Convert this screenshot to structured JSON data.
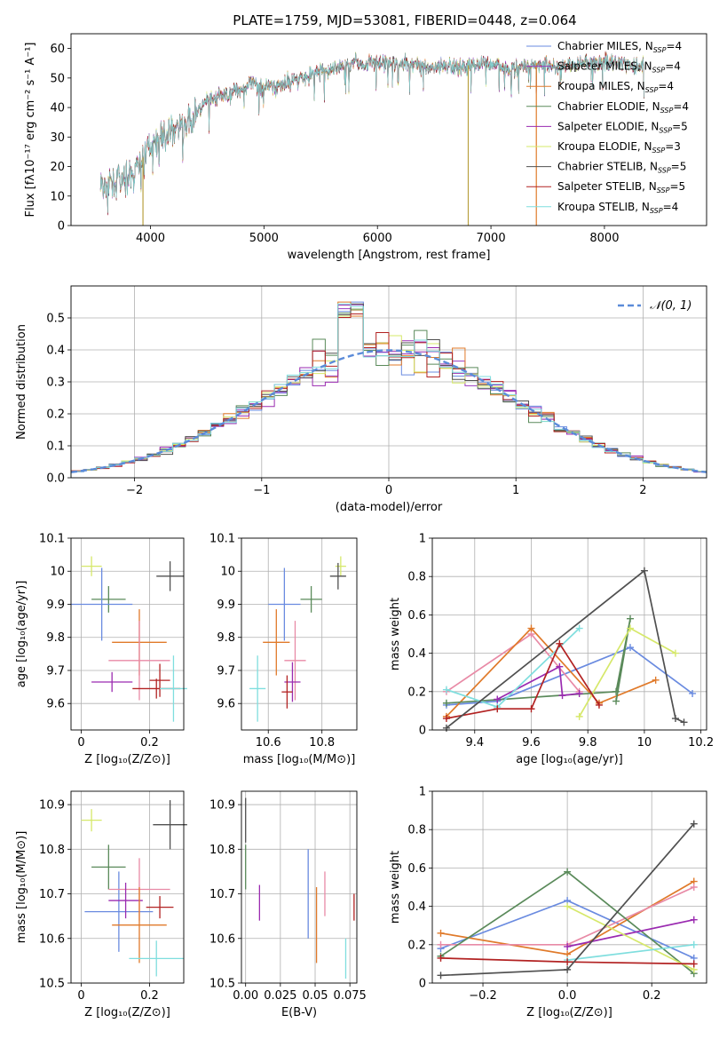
{
  "colors": [
    "#6a8be0",
    "#9a3bc0",
    "#e07a2a",
    "#5a8a5a",
    "#9a2ab0",
    "#d6e86a",
    "#505050",
    "#b22222",
    "#7fdede",
    "#e88aa6"
  ],
  "chart_data": [
    {
      "id": "spectrum",
      "type": "line",
      "title": "PLATE=1759, MJD=53081, FIBERID=0448, z=0.064",
      "xlabel": "wavelength [Angstrom, rest frame]",
      "ylabel": "Flux [fλ10⁻¹⁷ erg cm⁻² s⁻¹ A⁻¹]",
      "xlim": [
        3300,
        8900
      ],
      "ylim": [
        0,
        65
      ],
      "xticks": [
        4000,
        5000,
        6000,
        7000,
        8000
      ],
      "yticks": [
        0,
        10,
        20,
        30,
        40,
        50,
        60
      ],
      "grid": false,
      "legend_position": "right",
      "legend": [
        {
          "label": "Chabrier MILES, N",
          "sub": "SSP",
          "suffix": "=4",
          "color": "#6a8be0"
        },
        {
          "label": "Salpeter MILES, N",
          "sub": "SSP",
          "suffix": "=4",
          "color": "#9a3bc0"
        },
        {
          "label": "Kroupa MILES, N",
          "sub": "SSP",
          "suffix": "=4",
          "color": "#e07a2a"
        },
        {
          "label": "Chabrier ELODIE, N",
          "sub": "SSP",
          "suffix": "=4",
          "color": "#5a8a5a"
        },
        {
          "label": "Salpeter ELODIE, N",
          "sub": "SSP",
          "suffix": "=5",
          "color": "#9a2ab0"
        },
        {
          "label": "Kroupa ELODIE, N",
          "sub": "SSP",
          "suffix": "=3",
          "color": "#d6e86a"
        },
        {
          "label": "Chabrier STELIB, N",
          "sub": "SSP",
          "suffix": "=5",
          "color": "#505050"
        },
        {
          "label": "Salpeter STELIB, N",
          "sub": "SSP",
          "suffix": "=5",
          "color": "#b22222"
        },
        {
          "label": "Kroupa STELIB, N",
          "sub": "SSP",
          "suffix": "=4",
          "color": "#7fdede"
        }
      ],
      "continuum": [
        [
          3560,
          13
        ],
        [
          3700,
          15
        ],
        [
          3850,
          17
        ],
        [
          3920,
          22
        ],
        [
          4000,
          28
        ],
        [
          4100,
          30
        ],
        [
          4200,
          33
        ],
        [
          4300,
          33
        ],
        [
          4400,
          38
        ],
        [
          4500,
          42
        ],
        [
          4700,
          45
        ],
        [
          4900,
          48
        ],
        [
          5100,
          47
        ],
        [
          5300,
          50
        ],
        [
          5600,
          53
        ],
        [
          5800,
          55
        ],
        [
          6000,
          55
        ],
        [
          6300,
          55
        ],
        [
          6500,
          53
        ],
        [
          6700,
          54
        ],
        [
          7000,
          55
        ],
        [
          7200,
          53
        ],
        [
          7400,
          55
        ],
        [
          7600,
          54
        ],
        [
          7900,
          55
        ],
        [
          8100,
          56
        ],
        [
          8300,
          54
        ],
        [
          8350,
          54
        ]
      ],
      "dips": [
        [
          3934,
          0
        ],
        [
          6800,
          0
        ],
        [
          7400,
          0
        ]
      ]
    },
    {
      "id": "residuals",
      "type": "histogram",
      "xlabel": "(data-model)/error",
      "ylabel": "Normed distribution",
      "xlim": [
        -2.5,
        2.5
      ],
      "ylim": [
        0,
        0.6
      ],
      "xticks": [
        -2,
        -1,
        0,
        1,
        2
      ],
      "xticklabels": [
        "−2",
        "−1",
        "0",
        "1",
        "2"
      ],
      "yticks": [
        0.0,
        0.1,
        0.2,
        0.3,
        0.4,
        0.5
      ],
      "yticklabels": [
        "0.0",
        "0.1",
        "0.2",
        "0.3",
        "0.4",
        "0.5"
      ],
      "grid": true,
      "legend_position": "top-right",
      "reference": {
        "label": "𝒩(0, 1)",
        "mean": 0,
        "sigma": 1,
        "color": "#5b8bd9"
      },
      "bin_width": 0.1
    },
    {
      "id": "age-vs-Z",
      "type": "errorbar",
      "xlabel": "Z [log₁₀(Z/Z⊙)]",
      "ylabel": "age  [log₁₀(age/yr)]",
      "xlim": [
        -0.03,
        0.3
      ],
      "ylim": [
        9.52,
        10.1
      ],
      "xticks": [
        0.0,
        0.2
      ],
      "yticks": [
        9.6,
        9.7,
        9.8,
        9.9,
        10.0,
        10.1
      ],
      "grid": true,
      "points": [
        {
          "x": 0.03,
          "y": 10.015,
          "xerr": 0.03,
          "yerr": 0.03,
          "color": "#d6e86a"
        },
        {
          "x": 0.26,
          "y": 9.985,
          "xerr": 0.04,
          "yerr": 0.045,
          "color": "#505050"
        },
        {
          "x": 0.08,
          "y": 9.915,
          "xerr": 0.05,
          "yerr": 0.04,
          "color": "#5a8a5a"
        },
        {
          "x": 0.06,
          "y": 9.9,
          "xerr": 0.09,
          "yerr": 0.11,
          "color": "#6a8be0"
        },
        {
          "x": 0.17,
          "y": 9.785,
          "xerr": 0.08,
          "yerr": 0.1,
          "color": "#e07a2a"
        },
        {
          "x": 0.17,
          "y": 9.73,
          "xerr": 0.09,
          "yerr": 0.12,
          "color": "#e88aa6"
        },
        {
          "x": 0.23,
          "y": 9.67,
          "xerr": 0.03,
          "yerr": 0.05,
          "color": "#b22222"
        },
        {
          "x": 0.09,
          "y": 9.665,
          "xerr": 0.06,
          "yerr": 0.03,
          "color": "#9a2ab0"
        },
        {
          "x": 0.22,
          "y": 9.645,
          "xerr": 0.07,
          "yerr": 0.03,
          "color": "#b22222"
        },
        {
          "x": 0.27,
          "y": 9.645,
          "xerr": 0.04,
          "yerr": 0.1,
          "color": "#7fdede"
        }
      ]
    },
    {
      "id": "age-vs-mass",
      "type": "errorbar",
      "xlabel": "mass [log₁₀(M/M⊙)]",
      "ylabel": "",
      "xlim": [
        10.5,
        10.93
      ],
      "ylim": [
        9.52,
        10.1
      ],
      "xticks": [
        10.6,
        10.8
      ],
      "yticks": [
        9.6,
        9.7,
        9.8,
        9.9,
        10.0,
        10.1
      ],
      "grid": true,
      "points": [
        {
          "x": 10.87,
          "y": 10.015,
          "xerr": 0.02,
          "yerr": 0.03,
          "color": "#d6e86a"
        },
        {
          "x": 10.86,
          "y": 9.985,
          "xerr": 0.03,
          "yerr": 0.04,
          "color": "#505050"
        },
        {
          "x": 10.76,
          "y": 9.915,
          "xerr": 0.04,
          "yerr": 0.04,
          "color": "#5a8a5a"
        },
        {
          "x": 10.66,
          "y": 9.9,
          "xerr": 0.06,
          "yerr": 0.11,
          "color": "#6a8be0"
        },
        {
          "x": 10.63,
          "y": 9.785,
          "xerr": 0.05,
          "yerr": 0.1,
          "color": "#e07a2a"
        },
        {
          "x": 10.7,
          "y": 9.73,
          "xerr": 0.04,
          "yerr": 0.12,
          "color": "#e88aa6"
        },
        {
          "x": 10.69,
          "y": 9.665,
          "xerr": 0.03,
          "yerr": 0.06,
          "color": "#9a2ab0"
        },
        {
          "x": 10.67,
          "y": 9.635,
          "xerr": 0.02,
          "yerr": 0.05,
          "color": "#b22222"
        },
        {
          "x": 10.56,
          "y": 9.645,
          "xerr": 0.03,
          "yerr": 0.1,
          "color": "#7fdede"
        }
      ]
    },
    {
      "id": "weight-vs-age",
      "type": "line",
      "xlabel": "age  [log₁₀(age/yr)]",
      "ylabel": "mass weight",
      "xlim": [
        9.25,
        10.22
      ],
      "ylim": [
        0,
        1
      ],
      "xticks": [
        9.4,
        9.6,
        9.8,
        10.0,
        10.2
      ],
      "yticks": [
        0.0,
        0.2,
        0.4,
        0.6,
        0.8,
        1.0
      ],
      "grid": true,
      "series": [
        {
          "color": "#6a8be0",
          "x": [
            9.3,
            9.48,
            9.95,
            10.17
          ],
          "y": [
            0.13,
            0.15,
            0.43,
            0.19
          ]
        },
        {
          "color": "#e88aa6",
          "x": [
            9.3,
            9.6,
            9.77
          ],
          "y": [
            0.2,
            0.5,
            0.2
          ]
        },
        {
          "color": "#e07a2a",
          "x": [
            9.3,
            9.6,
            9.84,
            10.04
          ],
          "y": [
            0.07,
            0.53,
            0.14,
            0.26
          ]
        },
        {
          "color": "#5a8a5a",
          "x": [
            9.3,
            9.9,
            9.95,
            9.9
          ],
          "y": [
            0.14,
            0.2,
            0.58,
            0.15
          ]
        },
        {
          "color": "#9a2ab0",
          "x": [
            9.48,
            9.7,
            9.71,
            9.77
          ],
          "y": [
            0.16,
            0.33,
            0.18,
            0.19
          ]
        },
        {
          "color": "#d6e86a",
          "x": [
            9.77,
            9.95,
            10.11
          ],
          "y": [
            0.07,
            0.53,
            0.4
          ]
        },
        {
          "color": "#7fdede",
          "x": [
            9.3,
            9.48,
            9.77
          ],
          "y": [
            0.21,
            0.12,
            0.53
          ]
        },
        {
          "color": "#b22222",
          "x": [
            9.3,
            9.48,
            9.6,
            9.7,
            9.84
          ],
          "y": [
            0.06,
            0.11,
            0.11,
            0.45,
            0.13
          ]
        },
        {
          "color": "#505050",
          "x": [
            9.3,
            10.0,
            10.11,
            10.14
          ],
          "y": [
            0.01,
            0.83,
            0.06,
            0.04
          ]
        }
      ]
    },
    {
      "id": "mass-vs-Z",
      "type": "errorbar",
      "xlabel": "Z [log₁₀(Z/Z⊙)]",
      "ylabel": "mass [log₁₀(M/M⊙)]",
      "xlim": [
        -0.03,
        0.3
      ],
      "ylim": [
        10.5,
        10.93
      ],
      "xticks": [
        0.0,
        0.2
      ],
      "yticks": [
        10.5,
        10.6,
        10.7,
        10.8,
        10.9
      ],
      "grid": true,
      "points": [
        {
          "x": 0.03,
          "y": 10.865,
          "xerr": 0.03,
          "yerr": 0.025,
          "color": "#d6e86a"
        },
        {
          "x": 0.26,
          "y": 10.855,
          "xerr": 0.05,
          "yerr": 0.055,
          "color": "#505050"
        },
        {
          "x": 0.08,
          "y": 10.76,
          "xerr": 0.05,
          "yerr": 0.05,
          "color": "#5a8a5a"
        },
        {
          "x": 0.11,
          "y": 10.66,
          "xerr": 0.1,
          "yerr": 0.09,
          "color": "#6a8be0"
        },
        {
          "x": 0.17,
          "y": 10.71,
          "xerr": 0.09,
          "yerr": 0.07,
          "color": "#e88aa6"
        },
        {
          "x": 0.13,
          "y": 10.685,
          "xerr": 0.05,
          "yerr": 0.04,
          "color": "#9a2ab0"
        },
        {
          "x": 0.23,
          "y": 10.67,
          "xerr": 0.04,
          "yerr": 0.025,
          "color": "#b22222"
        },
        {
          "x": 0.17,
          "y": 10.63,
          "xerr": 0.08,
          "yerr": 0.085,
          "color": "#e07a2a"
        },
        {
          "x": 0.22,
          "y": 10.555,
          "xerr": 0.08,
          "yerr": 0.04,
          "color": "#7fdede"
        }
      ]
    },
    {
      "id": "mass-vs-EBV",
      "type": "errorbar",
      "xlabel": "E(B-V)",
      "ylabel": "",
      "xlim": [
        -0.003,
        0.08
      ],
      "ylim": [
        10.5,
        10.93
      ],
      "xticks": [
        0.0,
        0.025,
        0.05,
        0.075
      ],
      "xticklabels": [
        "0.00",
        "0.025",
        "0.05",
        "0.075"
      ],
      "yticks": [
        10.5,
        10.6,
        10.7,
        10.8,
        10.9
      ],
      "grid": true,
      "points": [
        {
          "x": 0.0,
          "y": 10.865,
          "xerr": 0,
          "yerr": 0.05,
          "color": "#505050"
        },
        {
          "x": 0.0,
          "y": 10.76,
          "xerr": 0,
          "yerr": 0.05,
          "color": "#5a8a5a"
        },
        {
          "x": 0.01,
          "y": 10.68,
          "xerr": 0,
          "yerr": 0.04,
          "color": "#9a2ab0"
        },
        {
          "x": 0.045,
          "y": 10.7,
          "xerr": 0,
          "yerr": 0.1,
          "color": "#6a8be0"
        },
        {
          "x": 0.051,
          "y": 10.63,
          "xerr": 0,
          "yerr": 0.085,
          "color": "#e07a2a"
        },
        {
          "x": 0.057,
          "y": 10.7,
          "xerr": 0,
          "yerr": 0.05,
          "color": "#e88aa6"
        },
        {
          "x": 0.072,
          "y": 10.555,
          "xerr": 0,
          "yerr": 0.045,
          "color": "#7fdede"
        },
        {
          "x": 0.078,
          "y": 10.67,
          "xerr": 0,
          "yerr": 0.03,
          "color": "#b22222"
        }
      ]
    },
    {
      "id": "weight-vs-Z",
      "type": "line",
      "xlabel": "Z [log₁₀(Z/Z⊙)]",
      "ylabel": "mass weight",
      "xlim": [
        -0.32,
        0.33
      ],
      "ylim": [
        0,
        1
      ],
      "xticks": [
        -0.2,
        0.0,
        0.2
      ],
      "xticklabels": [
        "−0.2",
        "0.0",
        "0.2"
      ],
      "yticks": [
        0.0,
        0.2,
        0.4,
        0.6,
        0.8,
        1.0
      ],
      "grid": true,
      "series": [
        {
          "color": "#6a8be0",
          "x": [
            -0.3,
            0.0,
            0.3
          ],
          "y": [
            0.18,
            0.43,
            0.13
          ]
        },
        {
          "color": "#e07a2a",
          "x": [
            -0.3,
            0.0,
            0.3
          ],
          "y": [
            0.26,
            0.15,
            0.53
          ]
        },
        {
          "color": "#e88aa6",
          "x": [
            -0.3,
            0.0,
            0.3
          ],
          "y": [
            0.2,
            0.2,
            0.5
          ]
        },
        {
          "color": "#5a8a5a",
          "x": [
            -0.3,
            0.0,
            0.3
          ],
          "y": [
            0.14,
            0.58,
            0.05
          ]
        },
        {
          "color": "#9a2ab0",
          "x": [
            0.0,
            0.3
          ],
          "y": [
            0.19,
            0.33
          ]
        },
        {
          "color": "#d6e86a",
          "x": [
            0.0,
            0.3
          ],
          "y": [
            0.4,
            0.07
          ]
        },
        {
          "color": "#7fdede",
          "x": [
            0.0,
            0.3
          ],
          "y": [
            0.12,
            0.2
          ]
        },
        {
          "color": "#b22222",
          "x": [
            -0.3,
            0.0,
            0.3
          ],
          "y": [
            0.13,
            0.11,
            0.1
          ]
        },
        {
          "color": "#505050",
          "x": [
            -0.3,
            0.0,
            0.3
          ],
          "y": [
            0.04,
            0.07,
            0.83
          ]
        }
      ]
    }
  ]
}
